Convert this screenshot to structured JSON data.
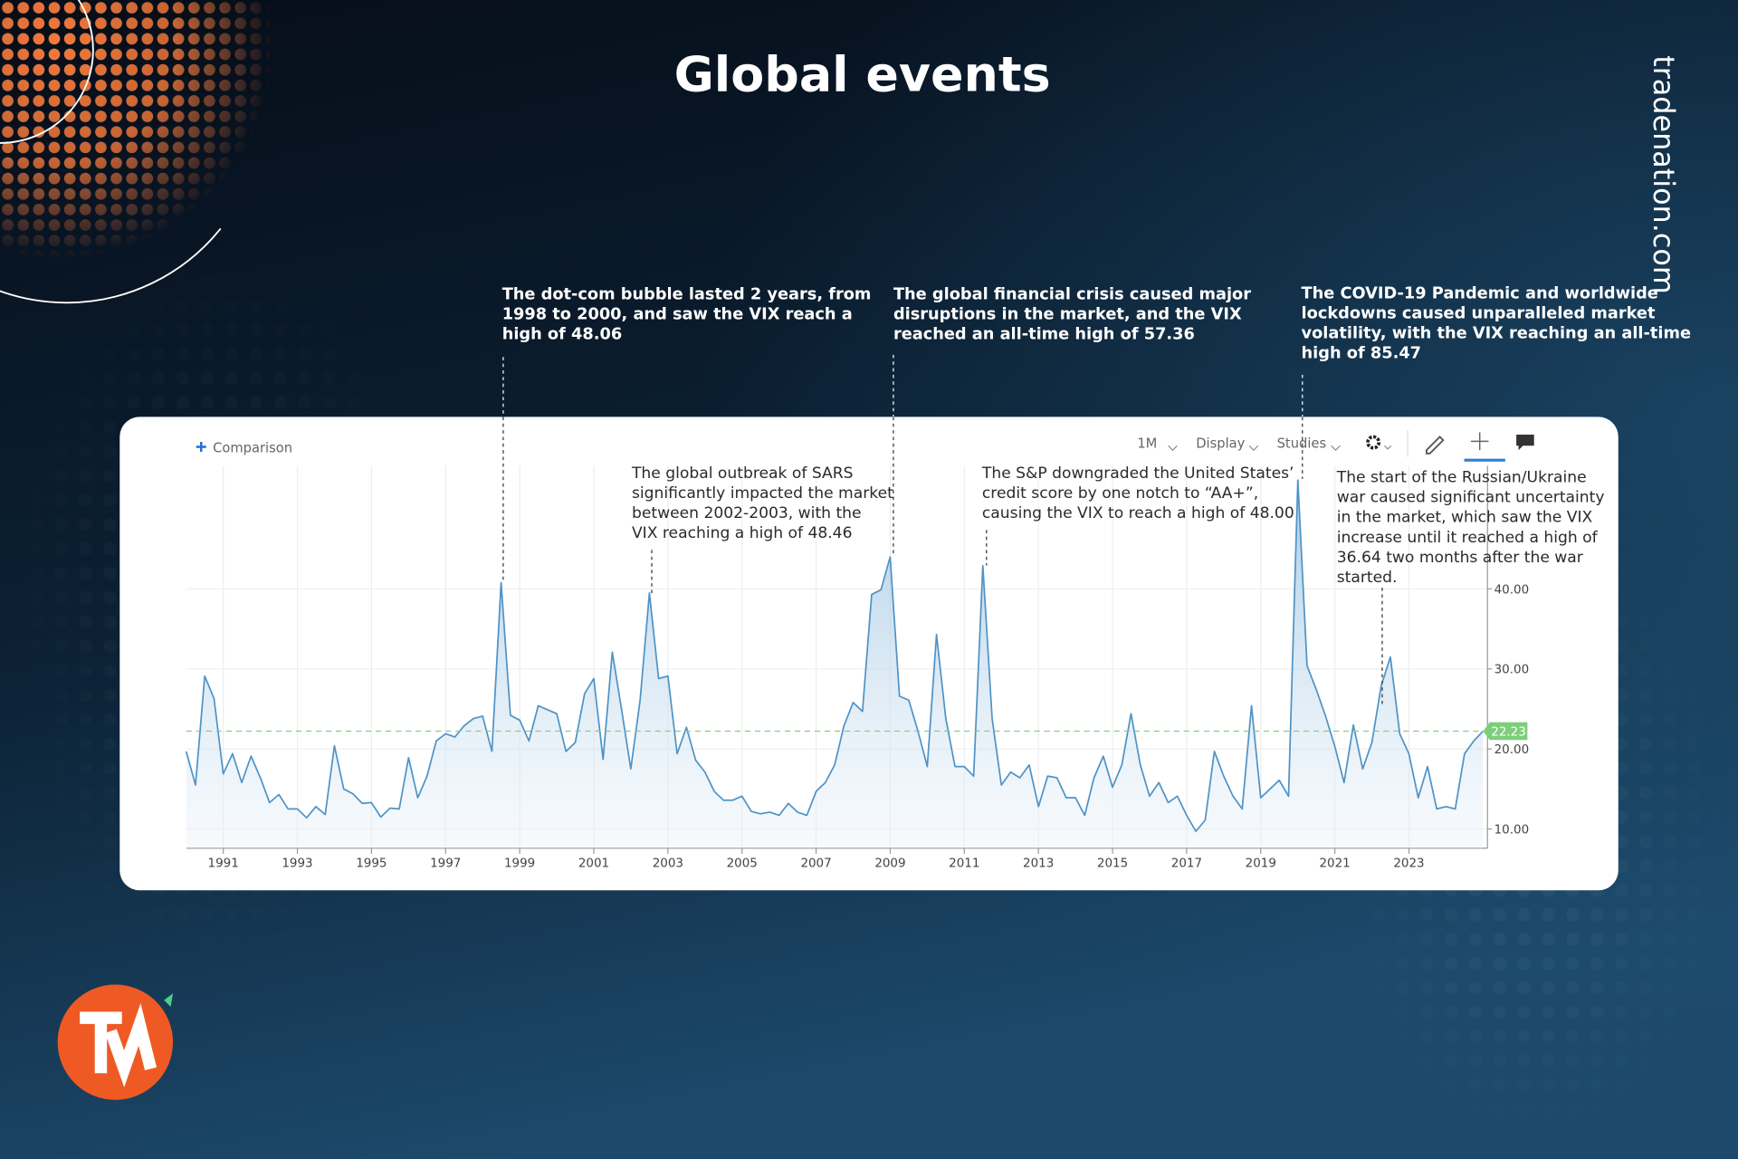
{
  "title": "Global events",
  "brand": "tradenation.com",
  "toolbar": {
    "comparison": "Comparison",
    "interval": "1M",
    "display": "Display",
    "studies": "Studies"
  },
  "chart_data": {
    "type": "line",
    "color": "#4f93c6",
    "reference_line": 22.23,
    "reference_color": "#7ccf7a",
    "xlim": [
      1990,
      2025
    ],
    "xticks": [
      1991,
      1993,
      1995,
      1997,
      1999,
      2001,
      2003,
      2005,
      2007,
      2009,
      2011,
      2013,
      2015,
      2017,
      2019,
      2021,
      2023
    ],
    "ylim": [
      7.6,
      55.4
    ],
    "yticks": [
      {
        "value": 10,
        "label": "10.00"
      },
      {
        "value": 20,
        "label": "20.00"
      },
      {
        "value": 30,
        "label": "30.00"
      },
      {
        "value": 40,
        "label": "40.00"
      }
    ],
    "grid": true,
    "x": [
      1990,
      1990.25,
      1990.5,
      1990.75,
      1991,
      1991.25,
      1991.5,
      1991.75,
      1992,
      1992.25,
      1992.5,
      1992.75,
      1993,
      1993.25,
      1993.5,
      1993.75,
      1994,
      1994.25,
      1994.5,
      1994.75,
      1995,
      1995.25,
      1995.5,
      1995.75,
      1996,
      1996.25,
      1996.5,
      1996.75,
      1997,
      1997.25,
      1997.5,
      1997.75,
      1998,
      1998.25,
      1998.5,
      1998.75,
      1999,
      1999.25,
      1999.5,
      1999.75,
      2000,
      2000.25,
      2000.5,
      2000.75,
      2001,
      2001.25,
      2001.5,
      2001.75,
      2002,
      2002.25,
      2002.5,
      2002.75,
      2003,
      2003.25,
      2003.5,
      2003.75,
      2004,
      2004.25,
      2004.5,
      2004.75,
      2005,
      2005.25,
      2005.5,
      2005.75,
      2006,
      2006.25,
      2006.5,
      2006.75,
      2007,
      2007.25,
      2007.5,
      2007.75,
      2008,
      2008.25,
      2008.5,
      2008.75,
      2009,
      2009.25,
      2009.5,
      2009.75,
      2010,
      2010.25,
      2010.5,
      2010.75,
      2011,
      2011.25,
      2011.5,
      2011.75,
      2012,
      2012.25,
      2012.5,
      2012.75,
      2013,
      2013.25,
      2013.5,
      2013.75,
      2014,
      2014.25,
      2014.5,
      2014.75,
      2015,
      2015.25,
      2015.5,
      2015.75,
      2016,
      2016.25,
      2016.5,
      2016.75,
      2017,
      2017.25,
      2017.5,
      2017.75,
      2018,
      2018.25,
      2018.5,
      2018.75,
      2019,
      2019.25,
      2019.5,
      2019.75,
      2020,
      2020.25,
      2020.5,
      2020.75,
      2021,
      2021.25,
      2021.5,
      2021.75,
      2022,
      2022.25,
      2022.5,
      2022.75,
      2023,
      2023.25,
      2023.5,
      2023.75,
      2024,
      2024.25,
      2024.5,
      2024.75,
      2025
    ],
    "values": [
      19.7,
      15.5,
      29.1,
      26.3,
      16.9,
      19.4,
      15.8,
      19.1,
      16.4,
      13.3,
      14.3,
      12.5,
      12.5,
      11.4,
      12.8,
      11.8,
      20.4,
      15.0,
      14.4,
      13.2,
      13.3,
      11.5,
      12.6,
      12.5,
      18.9,
      13.9,
      16.6,
      21.0,
      21.9,
      21.5,
      22.9,
      23.8,
      24.1,
      19.7,
      40.8,
      24.2,
      23.6,
      21.0,
      25.4,
      24.9,
      24.4,
      19.7,
      20.8,
      26.9,
      28.8,
      18.7,
      32.1,
      24.9,
      17.5,
      26.1,
      39.5,
      28.8,
      29.1,
      19.4,
      22.7,
      18.6,
      17.1,
      14.7,
      13.6,
      13.6,
      14.1,
      12.2,
      11.9,
      12.1,
      11.7,
      13.2,
      12.1,
      11.7,
      14.7,
      15.8,
      18.0,
      22.9,
      25.8,
      24.7,
      39.3,
      39.9,
      44.0,
      26.6,
      26.1,
      22.2,
      17.8,
      34.3,
      23.8,
      17.8,
      17.8,
      16.6,
      42.9,
      23.8,
      15.5,
      17.1,
      16.4,
      18.0,
      12.8,
      16.6,
      16.4,
      13.9,
      13.9,
      11.7,
      16.4,
      19.1,
      15.2,
      18.0,
      24.4,
      18.0,
      14.1,
      15.8,
      13.3,
      14.1,
      11.7,
      9.7,
      11.1,
      19.7,
      16.6,
      14.1,
      12.5,
      25.4,
      13.9,
      15.0,
      16.1,
      14.1,
      53.6,
      30.4,
      27.4,
      24.1,
      20.3,
      15.8,
      23.0,
      17.5,
      20.8,
      27.9,
      31.5,
      21.9,
      19.4,
      13.9,
      17.8,
      12.5,
      12.8,
      12.5,
      19.4,
      21.0,
      22.23
    ],
    "annotations": [
      {
        "lines": [
          "The dot-com bubble lasted 2 years, from",
          "1998 to 2000, and saw the VIX reach a",
          "high of 48.06"
        ]
      },
      {
        "lines": [
          "The global outbreak of SARS",
          "significantly impacted the market",
          "between 2002-2003, with the",
          "VIX reaching a high of 48.46"
        ]
      },
      {
        "lines": [
          "The global financial crisis caused major",
          "disruptions in the market, and the VIX",
          "reached an all-time high of 57.36"
        ]
      },
      {
        "lines": [
          "The S&P downgraded the United States’",
          "credit score by one notch to “AA+”,",
          "causing the VIX to reach a high of 48.00"
        ]
      },
      {
        "lines": [
          "The COVID-19 Pandemic and worldwide",
          "lockdowns caused unparalleled market",
          "volatility, with the VIX reaching an all-time",
          "high of 85.47"
        ]
      },
      {
        "lines": [
          "The start of the Russian/Ukraine",
          "war caused significant uncertainty",
          "in the market, which saw the VIX",
          "increase until it reached a high of",
          "36.64 two months after the war",
          "started."
        ]
      }
    ]
  }
}
